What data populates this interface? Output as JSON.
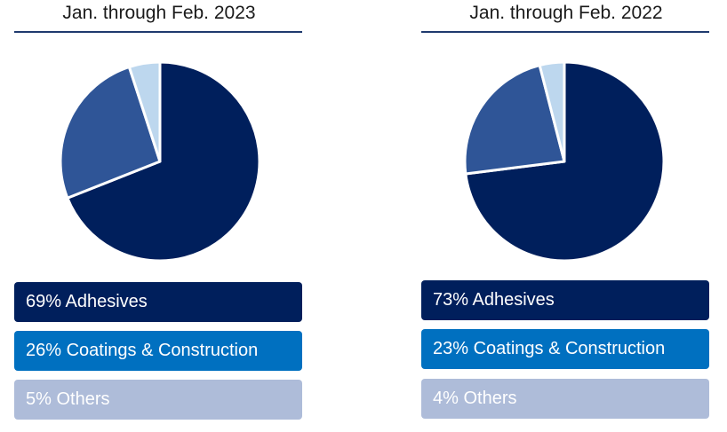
{
  "colors": {
    "adhesives": "#001f5c",
    "coatings": "#0070c0",
    "others": "#aebcd9",
    "pie_adhesives": "#001f5c",
    "pie_coatings": "#2f5597",
    "pie_others": "#bdd7ee"
  },
  "chart_data": [
    {
      "type": "pie",
      "title": "Jan. through Feb. 2023",
      "categories": [
        "Adhesives",
        "Coatings & Construction",
        "Others"
      ],
      "values": [
        69,
        26,
        5
      ],
      "legend": [
        {
          "label": "69% Adhesives"
        },
        {
          "label": "26% Coatings & Construction"
        },
        {
          "label": "5% Others"
        }
      ]
    },
    {
      "type": "pie",
      "title": "Jan. through Feb. 2022",
      "categories": [
        "Adhesives",
        "Coatings & Construction",
        "Others"
      ],
      "values": [
        73,
        23,
        4
      ],
      "legend": [
        {
          "label": "73% Adhesives"
        },
        {
          "label": "23% Coatings & Construction"
        },
        {
          "label": "4% Others"
        }
      ]
    }
  ]
}
